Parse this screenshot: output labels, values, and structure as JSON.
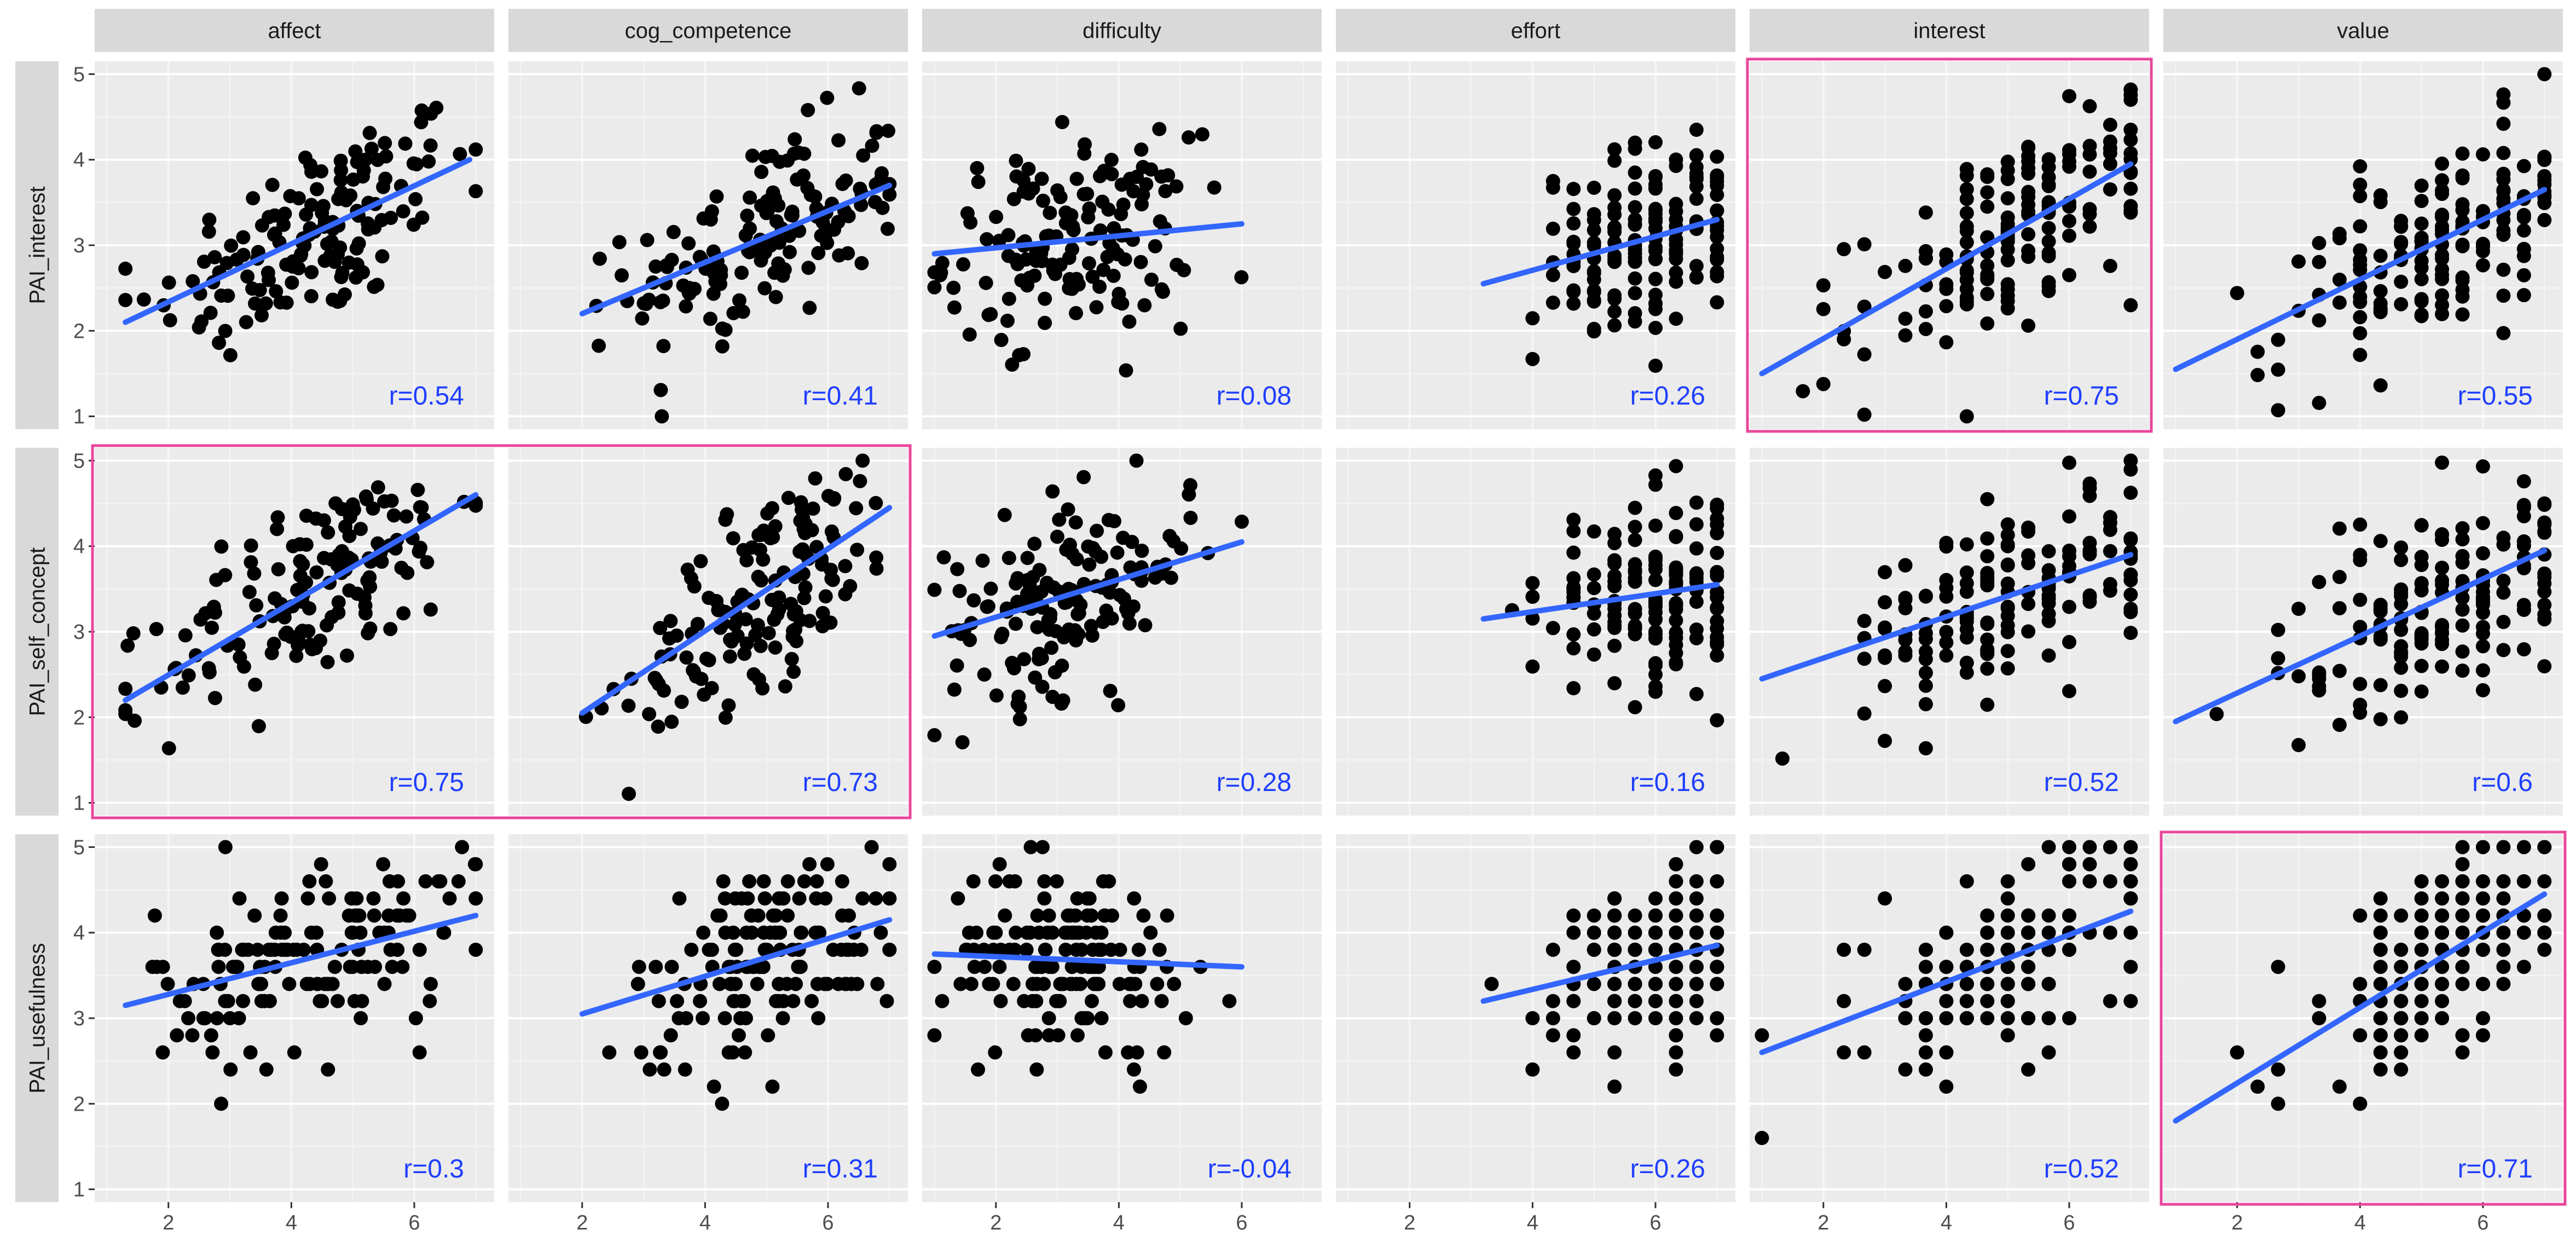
{
  "chart_data": {
    "type": "scatter",
    "facet_columns": [
      "affect",
      "cog_competence",
      "difficulty",
      "effort",
      "interest",
      "value"
    ],
    "facet_rows": [
      "PAI_interest",
      "PAI_self_concept",
      "PAI_usefulness"
    ],
    "x_ticks": [
      2,
      4,
      6
    ],
    "y_ticks": [
      1,
      2,
      3,
      4,
      5
    ],
    "xlim": [
      0.8,
      7.3
    ],
    "ylim": [
      0.85,
      5.15
    ],
    "grid": true,
    "colors": {
      "panel_bg": "#ebebeb",
      "grid_major": "#ffffff",
      "strip_bg": "#d9d9d9",
      "point": "#000000",
      "fit_line": "#3366ff",
      "r_text": "#1f3fff",
      "highlight_border": "#e8479b"
    },
    "highlights": [
      {
        "row": 0,
        "col": 4
      },
      {
        "row": 1,
        "col": 0,
        "col_end": 1
      },
      {
        "row": 2,
        "col": 5
      }
    ],
    "panels": [
      [
        {
          "r_label": "r=0.54",
          "line": [
            [
              1.3,
              2.1
            ],
            [
              6.9,
              4.0
            ]
          ],
          "x_range": [
            1.3,
            7.0
          ],
          "x_center": 4.4,
          "x_sd": 1.3
        },
        {
          "r_label": "r=0.41",
          "line": [
            [
              2.0,
              2.2
            ],
            [
              7.0,
              3.7
            ]
          ],
          "x_range": [
            2.0,
            7.0
          ],
          "x_center": 5.0,
          "x_sd": 1.1
        },
        {
          "r_label": "r=0.08",
          "line": [
            [
              1.0,
              2.9
            ],
            [
              6.0,
              3.25
            ]
          ],
          "x_range": [
            1.0,
            6.0
          ],
          "x_center": 3.2,
          "x_sd": 1.0
        },
        {
          "r_label": "r=0.26",
          "line": [
            [
              3.2,
              2.55
            ],
            [
              7.0,
              3.3
            ]
          ],
          "x_range": [
            3.2,
            7.0
          ],
          "x_center": 5.9,
          "x_sd": 0.9
        },
        {
          "r_label": "r=0.75",
          "line": [
            [
              1.0,
              1.5
            ],
            [
              7.0,
              3.95
            ]
          ],
          "x_range": [
            1.0,
            7.0
          ],
          "x_center": 5.1,
          "x_sd": 1.3
        },
        {
          "r_label": "r=0.55",
          "line": [
            [
              1.0,
              1.55
            ],
            [
              7.0,
              3.65
            ]
          ],
          "x_range": [
            1.0,
            7.0
          ],
          "x_center": 5.2,
          "x_sd": 1.2
        }
      ],
      [
        {
          "r_label": "r=0.75",
          "line": [
            [
              1.3,
              2.2
            ],
            [
              7.0,
              4.6
            ]
          ],
          "x_range": [
            1.3,
            7.0
          ],
          "x_center": 4.4,
          "x_sd": 1.3
        },
        {
          "r_label": "r=0.73",
          "line": [
            [
              2.0,
              2.05
            ],
            [
              7.0,
              4.45
            ]
          ],
          "x_range": [
            2.0,
            7.0
          ],
          "x_center": 5.0,
          "x_sd": 1.1
        },
        {
          "r_label": "r=0.28",
          "line": [
            [
              1.0,
              2.95
            ],
            [
              6.0,
              4.05
            ]
          ],
          "x_range": [
            1.0,
            6.0
          ],
          "x_center": 3.2,
          "x_sd": 1.0
        },
        {
          "r_label": "r=0.16",
          "line": [
            [
              3.2,
              3.15
            ],
            [
              7.0,
              3.55
            ]
          ],
          "x_range": [
            3.2,
            7.0
          ],
          "x_center": 5.9,
          "x_sd": 0.9
        },
        {
          "r_label": "r=0.52",
          "line": [
            [
              1.0,
              2.45
            ],
            [
              7.0,
              3.9
            ]
          ],
          "x_range": [
            1.0,
            7.0
          ],
          "x_center": 5.1,
          "x_sd": 1.3
        },
        {
          "r_label": "r=0.6",
          "line": [
            [
              1.0,
              1.95
            ],
            [
              7.0,
              3.95
            ]
          ],
          "x_range": [
            1.0,
            7.0
          ],
          "x_center": 5.2,
          "x_sd": 1.2
        }
      ],
      [
        {
          "r_label": "r=0.3",
          "line": [
            [
              1.3,
              3.15
            ],
            [
              7.0,
              4.2
            ]
          ],
          "x_range": [
            1.3,
            7.0
          ],
          "x_center": 4.4,
          "x_sd": 1.3
        },
        {
          "r_label": "r=0.31",
          "line": [
            [
              2.0,
              3.05
            ],
            [
              7.0,
              4.15
            ]
          ],
          "x_range": [
            2.0,
            7.0
          ],
          "x_center": 5.0,
          "x_sd": 1.1
        },
        {
          "r_label": "r=-0.04",
          "line": [
            [
              1.0,
              3.75
            ],
            [
              6.0,
              3.6
            ]
          ],
          "x_range": [
            1.0,
            6.0
          ],
          "x_center": 3.2,
          "x_sd": 1.0
        },
        {
          "r_label": "r=0.26",
          "line": [
            [
              3.2,
              3.2
            ],
            [
              7.0,
              3.85
            ]
          ],
          "x_range": [
            3.2,
            7.0
          ],
          "x_center": 5.9,
          "x_sd": 0.9
        },
        {
          "r_label": "r=0.52",
          "line": [
            [
              1.0,
              2.6
            ],
            [
              7.0,
              4.25
            ]
          ],
          "x_range": [
            1.0,
            7.0
          ],
          "x_center": 5.1,
          "x_sd": 1.3
        },
        {
          "r_label": "r=0.71",
          "line": [
            [
              1.0,
              1.8
            ],
            [
              7.0,
              4.45
            ]
          ],
          "x_range": [
            1.0,
            7.0
          ],
          "x_center": 5.2,
          "x_sd": 1.2
        }
      ]
    ]
  }
}
